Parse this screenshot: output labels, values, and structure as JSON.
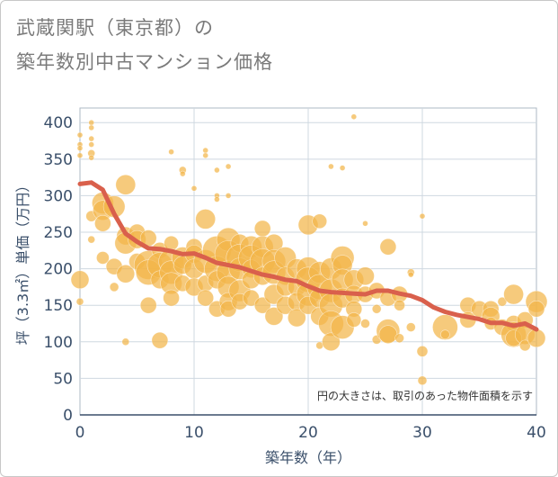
{
  "title_line1": "武蔵関駅（東京都）の",
  "title_line2": "築年数別中古マンション価格",
  "note": "円の大きさは、取引のあった物件面積を示す",
  "colors": {
    "bubble": "#f3b54a",
    "trend": "#d9604c",
    "grid": "#cfd8e0",
    "axis_text": "#3a4f6a"
  },
  "chart_data": {
    "type": "scatter",
    "xlabel": "築年数（年）",
    "ylabel": "坪（3.3㎡）単価（万円）",
    "xlim": [
      0,
      40
    ],
    "ylim": [
      0,
      420
    ],
    "xticks": [
      0,
      10,
      20,
      30,
      40
    ],
    "yticks": [
      0,
      50,
      100,
      150,
      200,
      250,
      300,
      350,
      400
    ],
    "grid": true,
    "bubble_note_placement": "bottom-right",
    "bubbles": [
      [
        0,
        383,
        3
      ],
      [
        0,
        370,
        3
      ],
      [
        0,
        365,
        3
      ],
      [
        0,
        355,
        3
      ],
      [
        0,
        185,
        10
      ],
      [
        0,
        155,
        4
      ],
      [
        1,
        400,
        3
      ],
      [
        1,
        393,
        3
      ],
      [
        1,
        378,
        3
      ],
      [
        1,
        370,
        3
      ],
      [
        1,
        358,
        4
      ],
      [
        1,
        352,
        3
      ],
      [
        1,
        272,
        6
      ],
      [
        1,
        240,
        4
      ],
      [
        2,
        290,
        12
      ],
      [
        2,
        280,
        11
      ],
      [
        2,
        262,
        9
      ],
      [
        2,
        215,
        7
      ],
      [
        3,
        285,
        12
      ],
      [
        3,
        203,
        9
      ],
      [
        3,
        175,
        5
      ],
      [
        4,
        315,
        11
      ],
      [
        4,
        245,
        10
      ],
      [
        4,
        235,
        12
      ],
      [
        4,
        193,
        10
      ],
      [
        4,
        100,
        4
      ],
      [
        5,
        250,
        9
      ],
      [
        5,
        240,
        10
      ],
      [
        5,
        210,
        9
      ],
      [
        6,
        242,
        9
      ],
      [
        6,
        205,
        16
      ],
      [
        6,
        195,
        14
      ],
      [
        6,
        150,
        9
      ],
      [
        7,
        225,
        9
      ],
      [
        7,
        205,
        14
      ],
      [
        7,
        185,
        10
      ],
      [
        7,
        102,
        9
      ],
      [
        8,
        235,
        8
      ],
      [
        8,
        210,
        14
      ],
      [
        8,
        195,
        13
      ],
      [
        8,
        180,
        12
      ],
      [
        8,
        160,
        9
      ],
      [
        8,
        360,
        3
      ],
      [
        9,
        335,
        4
      ],
      [
        9,
        330,
        3
      ],
      [
        9,
        215,
        12
      ],
      [
        9,
        205,
        10
      ],
      [
        9,
        180,
        9
      ],
      [
        10,
        310,
        3
      ],
      [
        10,
        230,
        9
      ],
      [
        10,
        220,
        10
      ],
      [
        10,
        200,
        11
      ],
      [
        10,
        175,
        10
      ],
      [
        11,
        362,
        3
      ],
      [
        11,
        355,
        3
      ],
      [
        11,
        268,
        11
      ],
      [
        11,
        210,
        13
      ],
      [
        11,
        180,
        9
      ],
      [
        11,
        160,
        9
      ],
      [
        12,
        335,
        3
      ],
      [
        12,
        300,
        3
      ],
      [
        12,
        295,
        3
      ],
      [
        12,
        225,
        16
      ],
      [
        12,
        200,
        14
      ],
      [
        12,
        185,
        10
      ],
      [
        12,
        145,
        9
      ],
      [
        13,
        340,
        3
      ],
      [
        13,
        300,
        3
      ],
      [
        13,
        240,
        13
      ],
      [
        13,
        220,
        15
      ],
      [
        13,
        195,
        13
      ],
      [
        13,
        175,
        12
      ],
      [
        13,
        155,
        10
      ],
      [
        13,
        145,
        9
      ],
      [
        14,
        235,
        10
      ],
      [
        14,
        215,
        15
      ],
      [
        14,
        200,
        12
      ],
      [
        14,
        170,
        12
      ],
      [
        14,
        155,
        9
      ],
      [
        15,
        230,
        12
      ],
      [
        15,
        215,
        14
      ],
      [
        15,
        200,
        10
      ],
      [
        15,
        185,
        10
      ],
      [
        15,
        160,
        9
      ],
      [
        16,
        255,
        9
      ],
      [
        16,
        230,
        12
      ],
      [
        16,
        210,
        14
      ],
      [
        16,
        190,
        10
      ],
      [
        16,
        150,
        9
      ],
      [
        17,
        235,
        10
      ],
      [
        17,
        210,
        13
      ],
      [
        17,
        195,
        13
      ],
      [
        17,
        165,
        11
      ],
      [
        17,
        135,
        10
      ],
      [
        18,
        215,
        12
      ],
      [
        18,
        190,
        10
      ],
      [
        18,
        175,
        10
      ],
      [
        18,
        150,
        10
      ],
      [
        19,
        200,
        11
      ],
      [
        19,
        175,
        10
      ],
      [
        19,
        155,
        10
      ],
      [
        19,
        133,
        10
      ],
      [
        20,
        260,
        11
      ],
      [
        20,
        200,
        13
      ],
      [
        20,
        185,
        14
      ],
      [
        20,
        165,
        13
      ],
      [
        20,
        150,
        10
      ],
      [
        21,
        265,
        8
      ],
      [
        21,
        195,
        12
      ],
      [
        21,
        175,
        14
      ],
      [
        21,
        160,
        11
      ],
      [
        21,
        135,
        10
      ],
      [
        21,
        95,
        4
      ],
      [
        22,
        340,
        3
      ],
      [
        22,
        200,
        12
      ],
      [
        22,
        170,
        13
      ],
      [
        22,
        150,
        13
      ],
      [
        22,
        125,
        14
      ],
      [
        22,
        100,
        10
      ],
      [
        23,
        338,
        3
      ],
      [
        23,
        215,
        13
      ],
      [
        23,
        205,
        11
      ],
      [
        23,
        185,
        12
      ],
      [
        23,
        160,
        11
      ],
      [
        23,
        120,
        13
      ],
      [
        24,
        408,
        3
      ],
      [
        24,
        185,
        11
      ],
      [
        24,
        165,
        10
      ],
      [
        24,
        145,
        9
      ],
      [
        24,
        130,
        8
      ],
      [
        25,
        262,
        3
      ],
      [
        25,
        190,
        10
      ],
      [
        25,
        165,
        9
      ],
      [
        25,
        125,
        5
      ],
      [
        26,
        170,
        9
      ],
      [
        26,
        145,
        5
      ],
      [
        26,
        103,
        5
      ],
      [
        27,
        230,
        9
      ],
      [
        27,
        160,
        9
      ],
      [
        27,
        115,
        13
      ],
      [
        27,
        110,
        10
      ],
      [
        28,
        165,
        9
      ],
      [
        28,
        150,
        6
      ],
      [
        28,
        105,
        5
      ],
      [
        29,
        195,
        4
      ],
      [
        29,
        192,
        3
      ],
      [
        29,
        120,
        5
      ],
      [
        30,
        272,
        3
      ],
      [
        30,
        87,
        6
      ],
      [
        30,
        47,
        5
      ],
      [
        32,
        120,
        14
      ],
      [
        32,
        110,
        5
      ],
      [
        34,
        150,
        9
      ],
      [
        34,
        130,
        9
      ],
      [
        35,
        145,
        9
      ],
      [
        36,
        145,
        9
      ],
      [
        36,
        135,
        10
      ],
      [
        36,
        125,
        7
      ],
      [
        37,
        155,
        5
      ],
      [
        37,
        120,
        9
      ],
      [
        38,
        165,
        11
      ],
      [
        38,
        125,
        9
      ],
      [
        38,
        110,
        14
      ],
      [
        38,
        105,
        9
      ],
      [
        39,
        130,
        9
      ],
      [
        39,
        110,
        11
      ],
      [
        39,
        95,
        6
      ],
      [
        40,
        155,
        12
      ],
      [
        40,
        145,
        9
      ],
      [
        40,
        105,
        10
      ]
    ],
    "trend": [
      [
        0,
        316
      ],
      [
        1,
        318
      ],
      [
        2,
        308
      ],
      [
        3,
        275
      ],
      [
        4,
        248
      ],
      [
        5,
        237
      ],
      [
        6,
        228
      ],
      [
        7,
        227
      ],
      [
        8,
        224
      ],
      [
        9,
        220
      ],
      [
        10,
        221
      ],
      [
        11,
        215
      ],
      [
        12,
        208
      ],
      [
        13,
        205
      ],
      [
        14,
        202
      ],
      [
        15,
        197
      ],
      [
        16,
        192
      ],
      [
        17,
        189
      ],
      [
        18,
        185
      ],
      [
        19,
        183
      ],
      [
        20,
        176
      ],
      [
        21,
        170
      ],
      [
        22,
        168
      ],
      [
        23,
        167
      ],
      [
        24,
        166
      ],
      [
        25,
        165
      ],
      [
        26,
        170
      ],
      [
        27,
        170
      ],
      [
        28,
        166
      ],
      [
        29,
        163
      ],
      [
        30,
        157
      ],
      [
        31,
        147
      ],
      [
        32,
        141
      ],
      [
        33,
        137
      ],
      [
        34,
        134
      ],
      [
        35,
        131
      ],
      [
        36,
        126
      ],
      [
        37,
        126
      ],
      [
        38,
        122
      ],
      [
        39,
        125
      ],
      [
        40,
        117
      ]
    ]
  }
}
